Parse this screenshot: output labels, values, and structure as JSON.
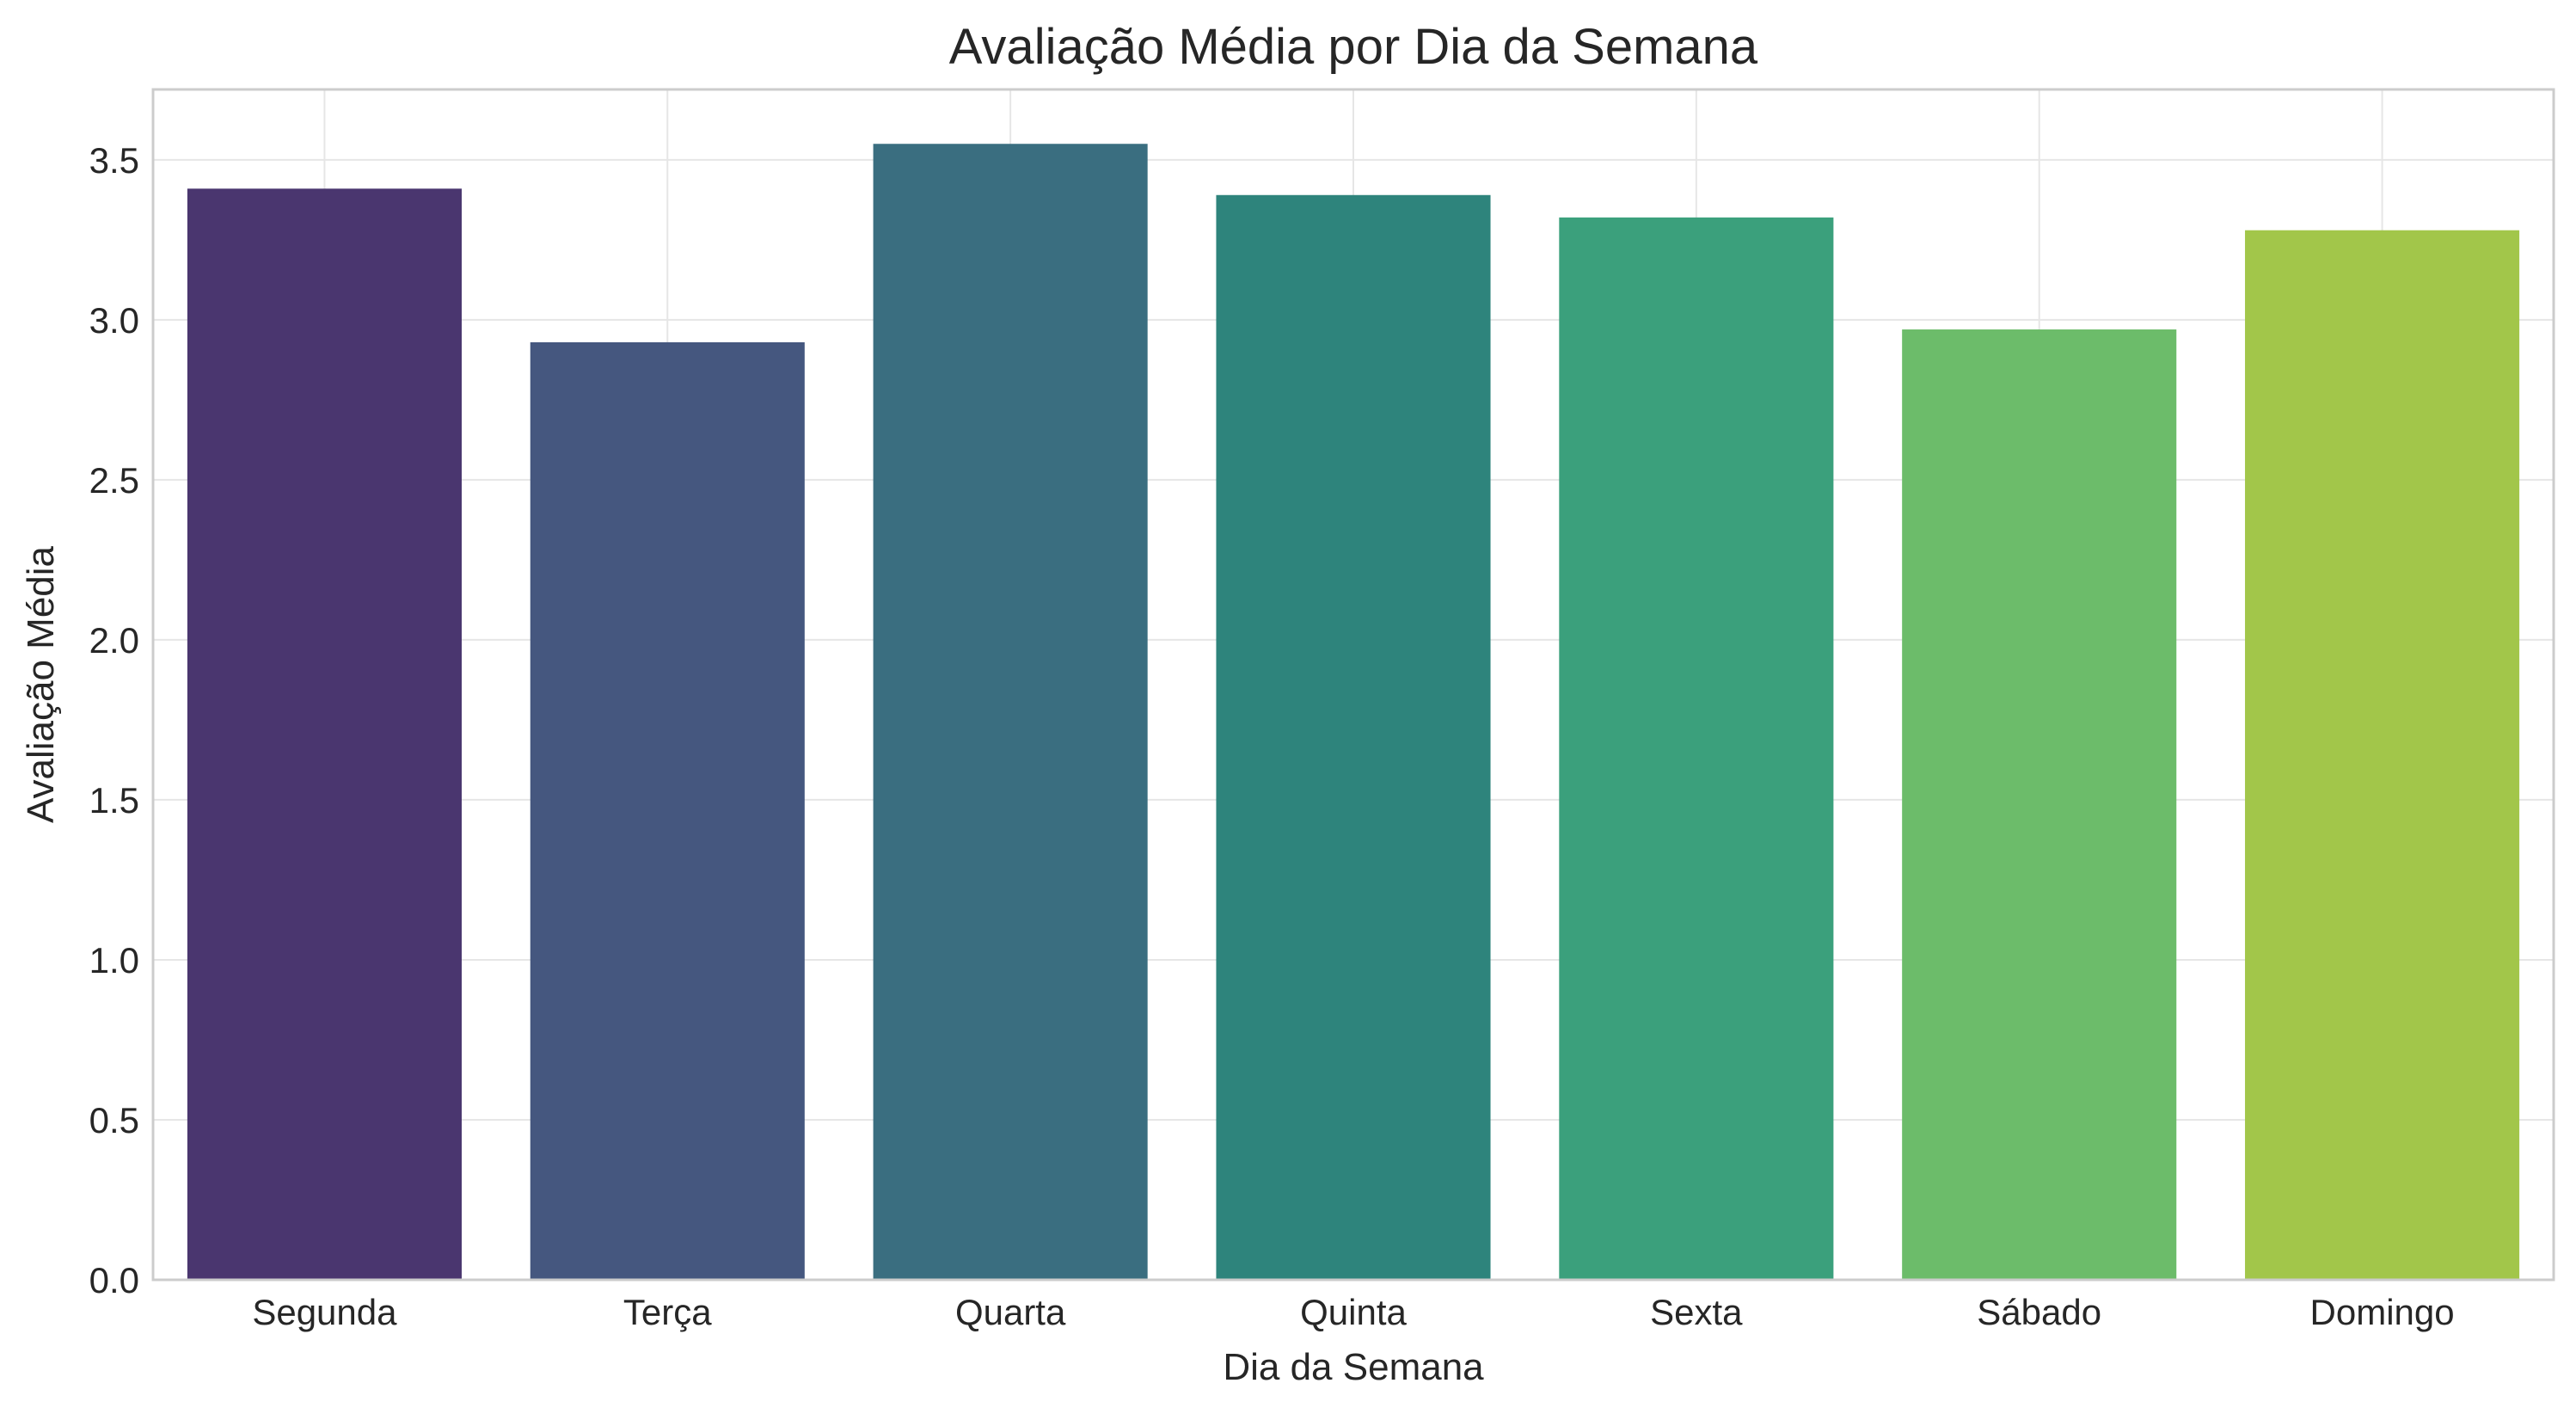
{
  "chart_data": {
    "type": "bar",
    "title": "Avaliação Média por Dia da Semana",
    "xlabel": "Dia da Semana",
    "ylabel": "Avaliação Média",
    "categories": [
      "Segunda",
      "Terça",
      "Quarta",
      "Quinta",
      "Sexta",
      "Sábado",
      "Domingo"
    ],
    "values": [
      3.41,
      2.93,
      3.55,
      3.39,
      3.32,
      2.97,
      3.28
    ],
    "colors": [
      "#4a366f",
      "#45577f",
      "#3a6e80",
      "#2e847c",
      "#3ba07c",
      "#6cbc6a",
      "#a2c64a"
    ],
    "ylim": [
      0,
      3.72
    ],
    "yticks": [
      "0.0",
      "0.5",
      "1.0",
      "1.5",
      "2.0",
      "2.5",
      "3.0",
      "3.5"
    ],
    "grid": true,
    "legend": "none"
  }
}
